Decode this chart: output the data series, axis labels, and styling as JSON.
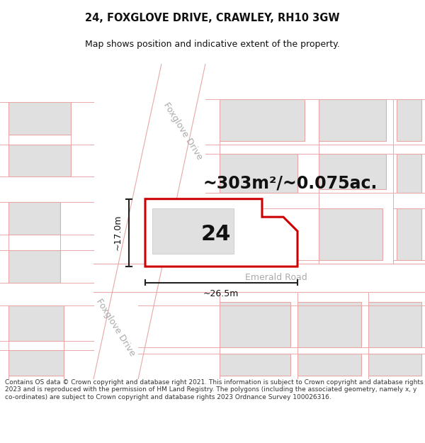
{
  "title": "24, FOXGLOVE DRIVE, CRAWLEY, RH10 3GW",
  "subtitle": "Map shows position and indicative extent of the property.",
  "footer": "Contains OS data © Crown copyright and database right 2021. This information is subject to Crown copyright and database rights 2023 and is reproduced with the permission of HM Land Registry. The polygons (including the associated geometry, namely x, y co-ordinates) are subject to Crown copyright and database rights 2023 Ordnance Survey 100026316.",
  "area_text": "~303m²/~0.075ac.",
  "label_24": "24",
  "dim_height": "~17.0m",
  "dim_width": "~26.5m",
  "road_label_upper": "Foxglove Drive",
  "road_label_lower": "Foxglove Drive",
  "road_label_emerald": "Emerald Road",
  "map_bg": "#ffffff",
  "building_fill": "#e0e0e0",
  "building_stroke": "#e8a8a8",
  "road_line_color": "#e8a8a8",
  "property_fill": "#ffffff",
  "property_stroke": "#cc0000",
  "dim_line_color": "#222222",
  "text_dark": "#111111",
  "text_road": "#aaaaaa",
  "title_fontsize": 10.5,
  "subtitle_fontsize": 9,
  "footer_fontsize": 6.5,
  "area_fontsize": 17,
  "label_fontsize": 22,
  "dim_fontsize": 9,
  "road_fontsize": 9
}
